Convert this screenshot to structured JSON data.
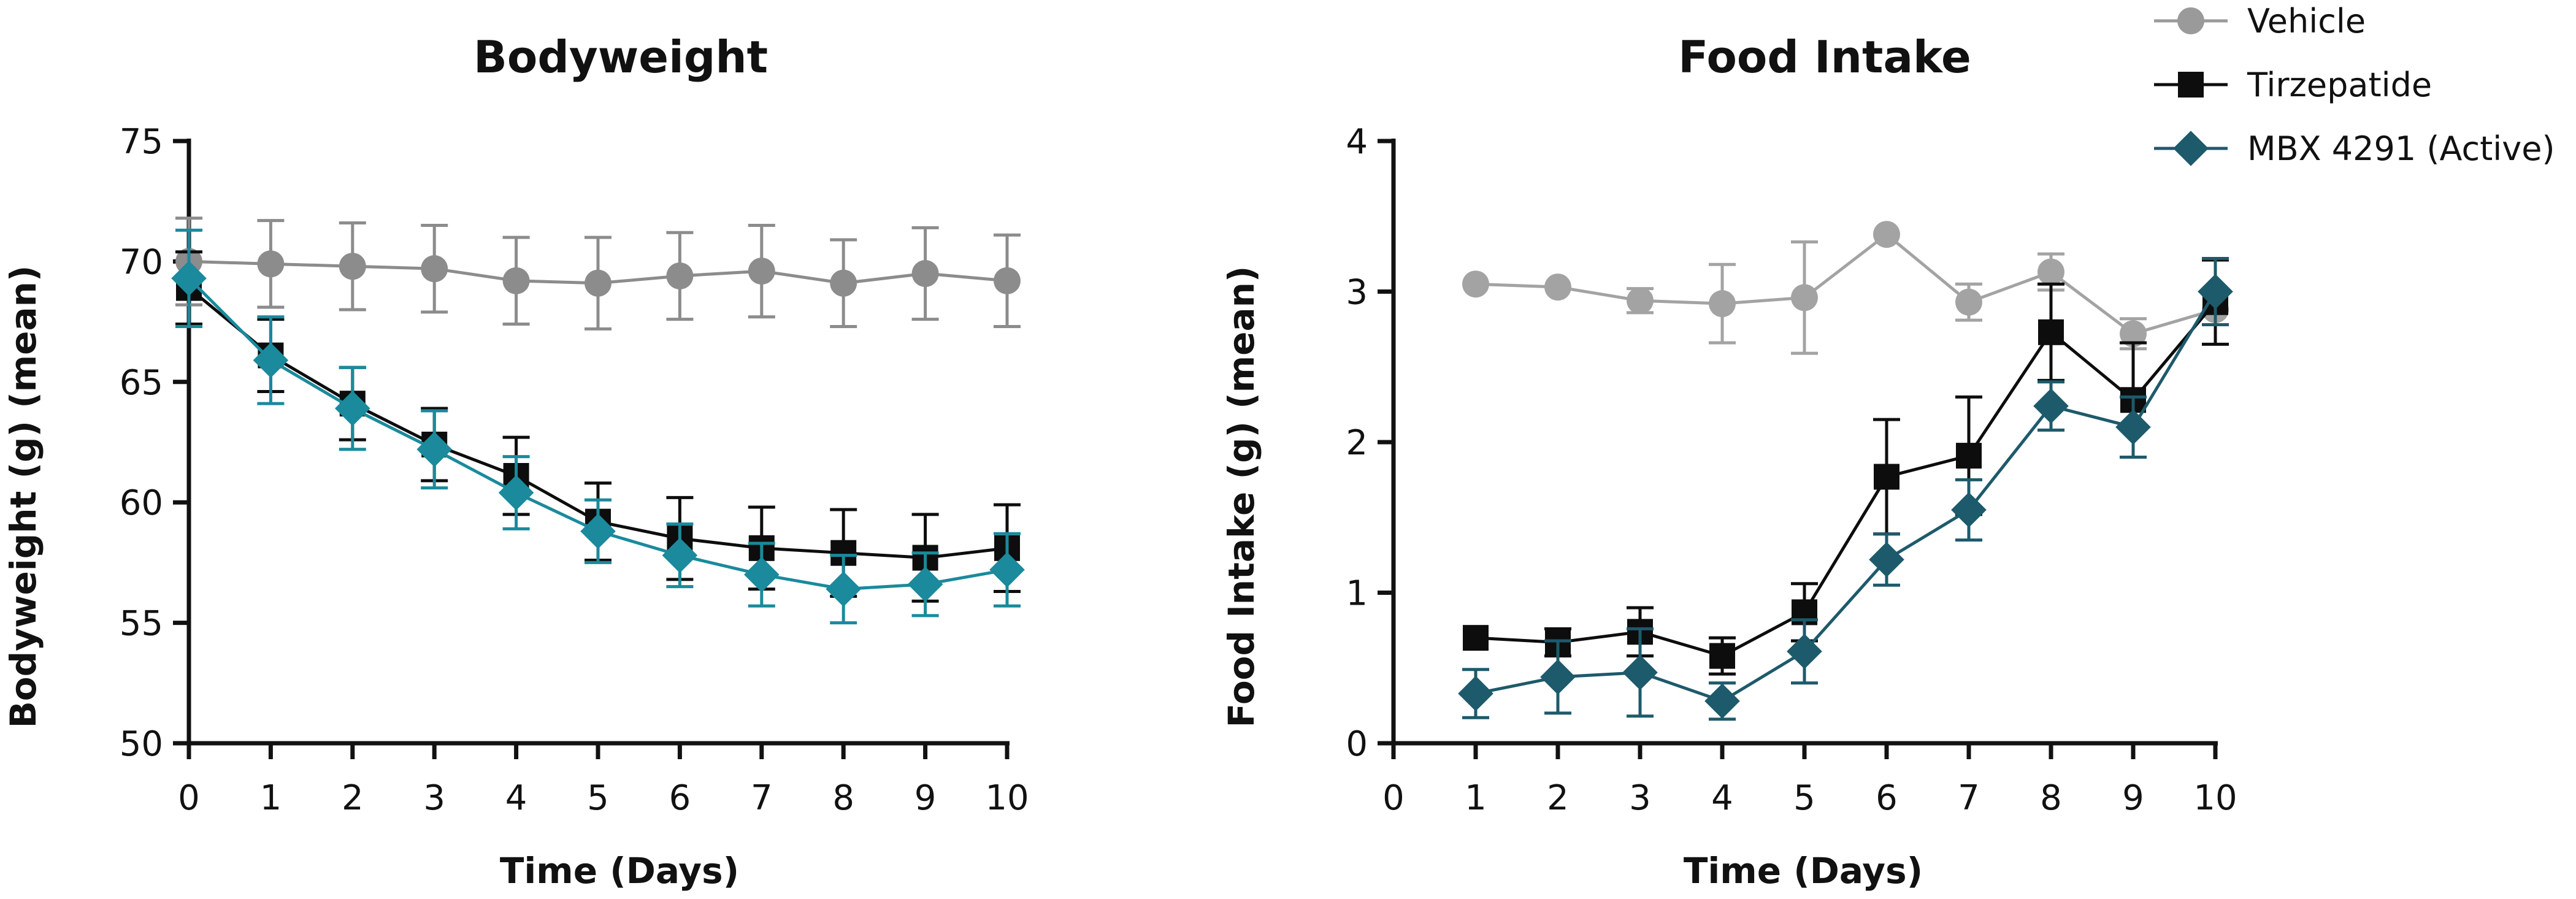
{
  "legend": [
    {
      "name": "Vehicle",
      "color": "#9a9a9a",
      "marker": "circle"
    },
    {
      "name": "Tirzepatide",
      "color": "#0d0d0d",
      "marker": "square"
    },
    {
      "name": "MBX 4291 (Active)",
      "color": "#1d5a6b",
      "marker": "diamond"
    }
  ],
  "chart_data": [
    {
      "type": "line",
      "title": "Bodyweight",
      "xlabel": "Time (Days)",
      "ylabel": "Bodyweight (g) (mean)",
      "xlim": [
        0,
        10
      ],
      "ylim": [
        50,
        75
      ],
      "xticks": [
        "0",
        "1",
        "2",
        "3",
        "4",
        "5",
        "6",
        "7",
        "8",
        "9",
        "10"
      ],
      "yticks": [
        "50",
        "55",
        "60",
        "65",
        "70",
        "75"
      ],
      "x": [
        0,
        1,
        2,
        3,
        4,
        5,
        6,
        7,
        8,
        9,
        10
      ],
      "series": [
        {
          "name": "Vehicle",
          "color": "#8c8c8c",
          "marker": "circle",
          "values": [
            70.0,
            69.9,
            69.8,
            69.7,
            69.2,
            69.1,
            69.4,
            69.6,
            69.1,
            69.5,
            69.2
          ],
          "errors": [
            1.8,
            1.8,
            1.8,
            1.8,
            1.8,
            1.9,
            1.8,
            1.9,
            1.8,
            1.9,
            1.9
          ]
        },
        {
          "name": "Tirzepatide",
          "color": "#0d0d0d",
          "marker": "square",
          "values": [
            68.9,
            66.1,
            64.1,
            62.4,
            61.1,
            59.2,
            58.5,
            58.1,
            57.9,
            57.7,
            58.1
          ],
          "errors": [
            1.5,
            1.5,
            1.5,
            1.5,
            1.6,
            1.6,
            1.7,
            1.7,
            1.8,
            1.8,
            1.8
          ]
        },
        {
          "name": "MBX 4291 (Active)",
          "color": "#1a8a9c",
          "marker": "diamond",
          "values": [
            69.3,
            65.9,
            63.9,
            62.2,
            60.4,
            58.8,
            57.8,
            57.0,
            56.4,
            56.6,
            57.2
          ],
          "errors": [
            2.0,
            1.8,
            1.7,
            1.6,
            1.5,
            1.3,
            1.3,
            1.3,
            1.4,
            1.3,
            1.5
          ]
        }
      ]
    },
    {
      "type": "line",
      "title": "Food Intake",
      "xlabel": "Time (Days)",
      "ylabel": "Food Intake (g) (mean)",
      "xlim": [
        0,
        10
      ],
      "ylim": [
        0,
        4
      ],
      "xticks": [
        "0",
        "1",
        "2",
        "3",
        "4",
        "5",
        "6",
        "7",
        "8",
        "9",
        "10"
      ],
      "yticks": [
        "0",
        "1",
        "2",
        "3",
        "4"
      ],
      "x": [
        1,
        2,
        3,
        4,
        5,
        6,
        7,
        8,
        9,
        10
      ],
      "series": [
        {
          "name": "Vehicle",
          "color": "#a3a3a3",
          "marker": "circle",
          "values": [
            3.05,
            3.03,
            2.94,
            2.92,
            2.96,
            3.38,
            2.93,
            3.13,
            2.72,
            2.88
          ],
          "errors": [
            0.0,
            0.0,
            0.08,
            0.26,
            0.37,
            0.0,
            0.12,
            0.12,
            0.1,
            0.1
          ]
        },
        {
          "name": "Tirzepatide",
          "color": "#0d0d0d",
          "marker": "square",
          "values": [
            0.7,
            0.67,
            0.74,
            0.58,
            0.87,
            1.77,
            1.91,
            2.73,
            2.28,
            2.93
          ],
          "errors": [
            0.0,
            0.09,
            0.16,
            0.12,
            0.19,
            0.38,
            0.39,
            0.32,
            0.38,
            0.28
          ]
        },
        {
          "name": "MBX 4291 (Active)",
          "color": "#1d5a6b",
          "marker": "diamond",
          "values": [
            0.33,
            0.44,
            0.47,
            0.28,
            0.61,
            1.22,
            1.55,
            2.24,
            2.1,
            3.0
          ],
          "errors": [
            0.16,
            0.24,
            0.29,
            0.12,
            0.21,
            0.17,
            0.2,
            0.16,
            0.2,
            0.22
          ]
        }
      ]
    }
  ]
}
